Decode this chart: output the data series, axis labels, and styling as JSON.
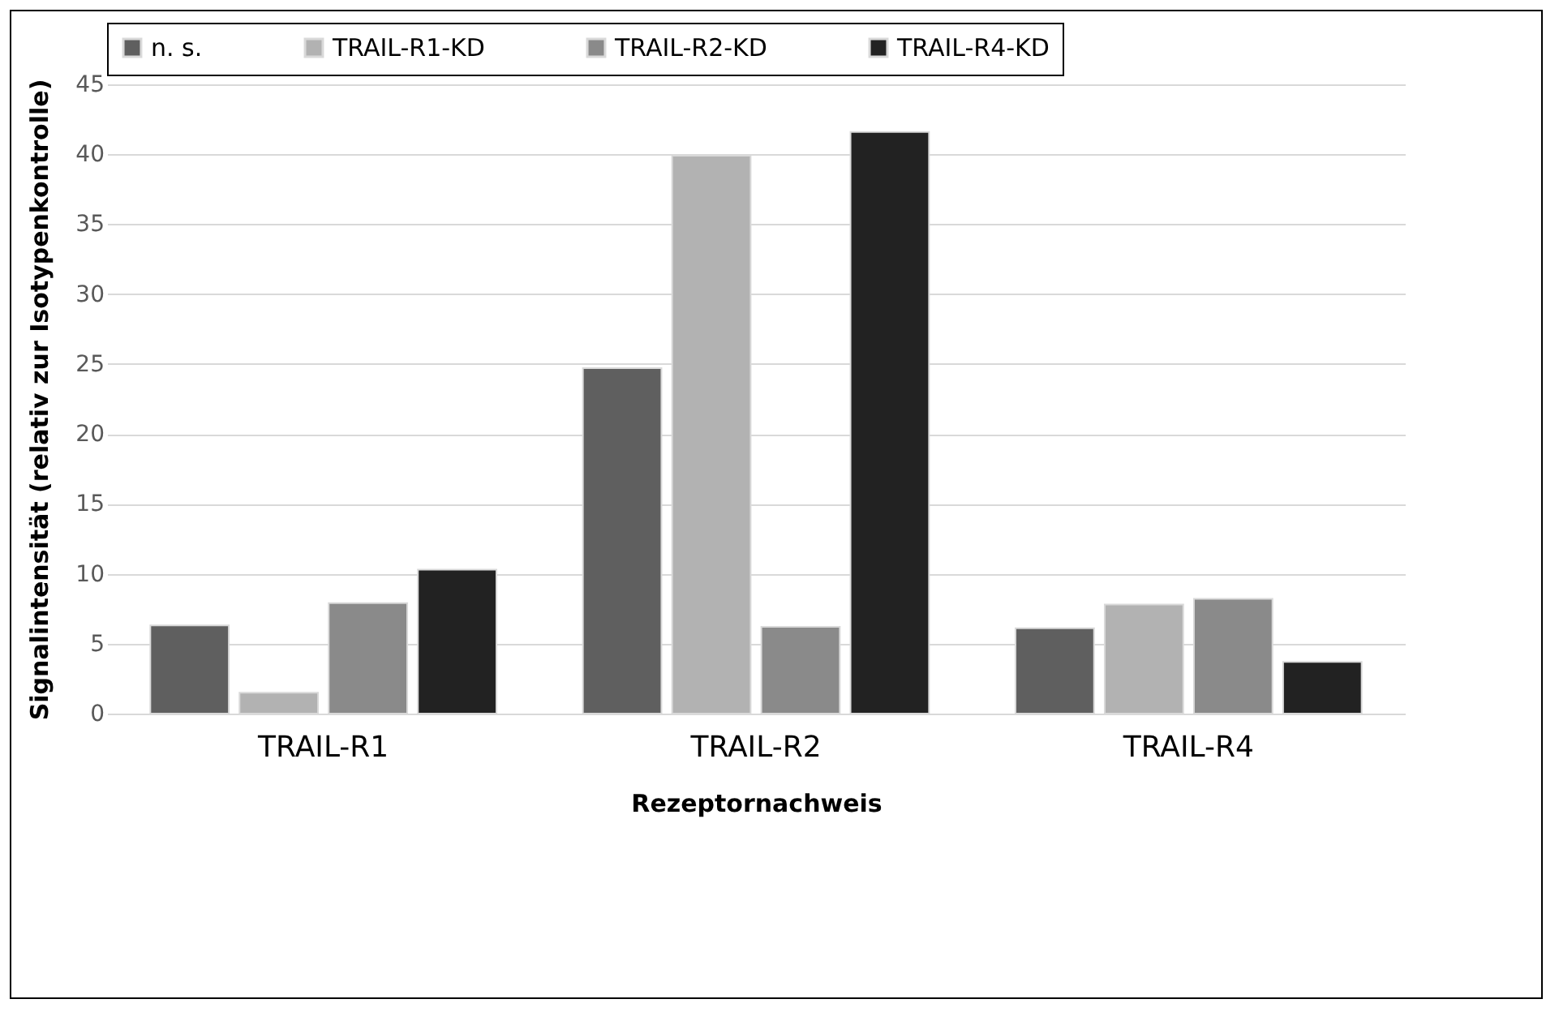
{
  "chart_data": {
    "type": "bar",
    "xlabel": "Rezeptornachweis",
    "ylabel": "Signalintensität (relativ zur Isotypenkontrolle)",
    "categories": [
      "TRAIL-R1",
      "TRAIL-R2",
      "TRAIL-R4"
    ],
    "series": [
      {
        "name": "n. s.",
        "color": "#5f5f5f",
        "values": [
          6.3,
          24.7,
          6.1
        ]
      },
      {
        "name": "TRAIL-R1-KD",
        "color": "#b2b2b2",
        "values": [
          1.5,
          39.9,
          7.8
        ]
      },
      {
        "name": "TRAIL-R2-KD",
        "color": "#8a8a8a",
        "values": [
          7.9,
          6.2,
          8.2
        ]
      },
      {
        "name": "TRAIL-R4-KD",
        "color": "#222222",
        "values": [
          10.3,
          41.6,
          3.7
        ]
      }
    ],
    "ylim": [
      0,
      45
    ],
    "yticks": [
      0,
      5,
      10,
      15,
      20,
      25,
      30,
      35,
      40,
      45
    ],
    "grid": "y",
    "legend": "top"
  }
}
